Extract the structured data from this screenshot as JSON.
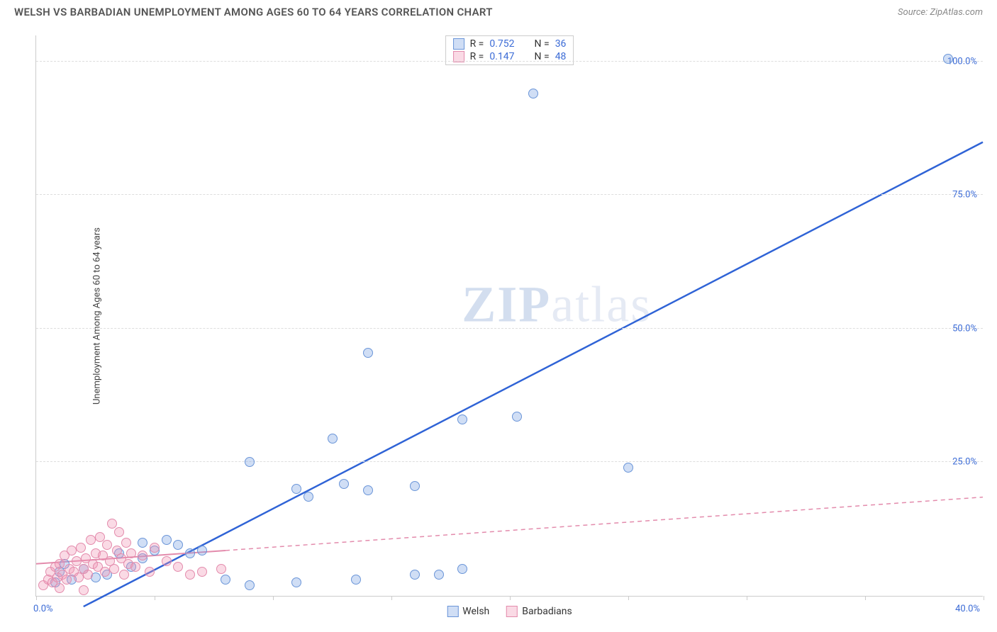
{
  "header": {
    "title": "WELSH VS BARBADIAN UNEMPLOYMENT AMONG AGES 60 TO 64 YEARS CORRELATION CHART",
    "source_prefix": "Source: ",
    "source_name": "ZipAtlas.com"
  },
  "chart": {
    "type": "scatter",
    "ylabel": "Unemployment Among Ages 60 to 64 years",
    "xlim": [
      0,
      40
    ],
    "ylim": [
      0,
      105
    ],
    "xtick_positions": [
      0,
      5,
      10,
      15,
      20,
      25,
      30,
      35,
      40
    ],
    "xaxis_start_label": "0.0%",
    "xaxis_end_label": "40.0%",
    "ytick_labels": [
      "25.0%",
      "50.0%",
      "75.0%",
      "100.0%"
    ],
    "ytick_values": [
      25,
      50,
      75,
      100
    ],
    "grid_color": "#dddddd",
    "axis_color": "#cccccc",
    "background_color": "#ffffff",
    "watermark_text_1": "ZIP",
    "watermark_text_2": "atlas",
    "series": [
      {
        "name": "Welsh",
        "color_fill": "rgba(120,160,225,0.35)",
        "color_stroke": "#6a95d8",
        "trend_color": "#2f63d6",
        "trend_dash": "none",
        "R": "0.752",
        "N": "36",
        "marker_radius": 7,
        "points": [
          [
            38.5,
            100.5
          ],
          [
            21.0,
            94.0
          ],
          [
            14.0,
            45.5
          ],
          [
            18.0,
            33.0
          ],
          [
            20.3,
            33.5
          ],
          [
            12.5,
            29.5
          ],
          [
            25.0,
            24.0
          ],
          [
            13.0,
            21.0
          ],
          [
            14.0,
            19.8
          ],
          [
            16.0,
            20.5
          ],
          [
            9.0,
            25.0
          ],
          [
            11.0,
            20.0
          ],
          [
            11.5,
            18.5
          ],
          [
            13.5,
            3.0
          ],
          [
            17.0,
            4.0
          ],
          [
            18.0,
            5.0
          ],
          [
            16.0,
            4.0
          ],
          [
            11.0,
            2.5
          ],
          [
            9.0,
            2.0
          ],
          [
            8.0,
            3.0
          ],
          [
            6.5,
            8.0
          ],
          [
            5.5,
            10.5
          ],
          [
            5.0,
            8.5
          ],
          [
            6.0,
            9.5
          ],
          [
            4.5,
            7.0
          ],
          [
            4.0,
            5.5
          ],
          [
            3.5,
            8.0
          ],
          [
            3.0,
            4.0
          ],
          [
            2.5,
            3.5
          ],
          [
            2.0,
            5.0
          ],
          [
            1.5,
            3.0
          ],
          [
            1.0,
            4.5
          ],
          [
            1.2,
            6.0
          ],
          [
            0.8,
            2.5
          ],
          [
            4.5,
            10.0
          ],
          [
            7.0,
            8.5
          ]
        ],
        "trend_line": {
          "x1": 2.0,
          "y1": -2.0,
          "x2": 40.0,
          "y2": 85.0
        }
      },
      {
        "name": "Barbadians",
        "color_fill": "rgba(240,150,180,0.35)",
        "color_stroke": "#e38bac",
        "trend_color": "#e38bac",
        "trend_dash": "6,5",
        "R": "0.147",
        "N": "48",
        "marker_radius": 7,
        "points": [
          [
            0.3,
            2.0
          ],
          [
            0.5,
            3.0
          ],
          [
            0.6,
            4.5
          ],
          [
            0.7,
            2.5
          ],
          [
            0.8,
            5.5
          ],
          [
            0.9,
            3.5
          ],
          [
            1.0,
            6.0
          ],
          [
            1.1,
            4.0
          ],
          [
            1.2,
            7.5
          ],
          [
            1.3,
            3.0
          ],
          [
            1.4,
            5.0
          ],
          [
            1.5,
            8.5
          ],
          [
            1.6,
            4.5
          ],
          [
            1.7,
            6.5
          ],
          [
            1.8,
            3.5
          ],
          [
            1.9,
            9.0
          ],
          [
            2.0,
            5.0
          ],
          [
            2.1,
            7.0
          ],
          [
            2.2,
            4.0
          ],
          [
            2.3,
            10.5
          ],
          [
            2.4,
            6.0
          ],
          [
            2.5,
            8.0
          ],
          [
            2.6,
            5.5
          ],
          [
            2.7,
            11.0
          ],
          [
            2.8,
            7.5
          ],
          [
            2.9,
            4.5
          ],
          [
            3.0,
            9.5
          ],
          [
            3.1,
            6.5
          ],
          [
            3.2,
            13.5
          ],
          [
            3.3,
            5.0
          ],
          [
            3.4,
            8.5
          ],
          [
            3.5,
            12.0
          ],
          [
            3.6,
            7.0
          ],
          [
            3.7,
            4.0
          ],
          [
            3.8,
            10.0
          ],
          [
            3.9,
            6.0
          ],
          [
            4.0,
            8.0
          ],
          [
            4.2,
            5.5
          ],
          [
            4.5,
            7.5
          ],
          [
            4.8,
            4.5
          ],
          [
            5.0,
            9.0
          ],
          [
            5.5,
            6.5
          ],
          [
            6.0,
            5.5
          ],
          [
            6.5,
            4.0
          ],
          [
            7.0,
            4.5
          ],
          [
            7.8,
            5.0
          ],
          [
            1.0,
            1.5
          ],
          [
            2.0,
            1.0
          ]
        ],
        "trend_line": {
          "x1": 0.0,
          "y1": 6.0,
          "x2": 40.0,
          "y2": 18.5
        },
        "trend_solid_until_x": 8.0
      }
    ]
  },
  "legend": {
    "stats_label_R": "R =",
    "stats_label_N": "N ="
  }
}
